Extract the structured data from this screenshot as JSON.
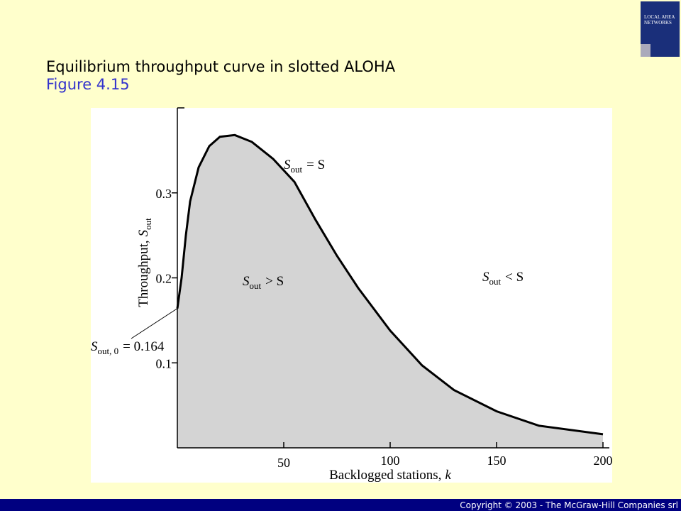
{
  "slide": {
    "title": "Equilibrium throughput curve in slotted ALOHA",
    "subtitle": "Figure 4.15",
    "copyright": "Copyright © 2003 - The McGraw-Hill Companies srl",
    "cover": "LOCAL AREA NETWORKS"
  },
  "chart_data": {
    "type": "area",
    "x": [
      0,
      2,
      4,
      6,
      10,
      15,
      20,
      27,
      35,
      45,
      55,
      65,
      75,
      85,
      100,
      115,
      130,
      150,
      170,
      200
    ],
    "series": [
      {
        "color": "#000000",
        "fill": "#d4d4d4",
        "values": [
          0.164,
          0.2,
          0.25,
          0.29,
          0.33,
          0.355,
          0.366,
          0.368,
          0.36,
          0.34,
          0.313,
          0.268,
          0.226,
          0.188,
          0.138,
          0.097,
          0.068,
          0.043,
          0.026,
          0.016
        ]
      }
    ],
    "xlim": [
      0,
      203
    ],
    "ylim": [
      0,
      0.4
    ],
    "xticks": [
      50,
      100,
      150,
      200
    ],
    "yticks": [
      0.1,
      0.2,
      0.3
    ],
    "xlabel": {
      "text": "Backlogged stations,",
      "var": "k"
    },
    "ylabel": {
      "text": "Throughput,",
      "var": "S",
      "sub": "out"
    },
    "annotations": [
      {
        "main": "S",
        "sub": "out",
        "rest": "= S"
      },
      {
        "main": "S",
        "sub": "out",
        "rest": "> S"
      },
      {
        "main": "S",
        "sub": "out",
        "rest": "< S"
      },
      {
        "main": "S",
        "sub": "out, 0",
        "rest": "= 0.164"
      }
    ]
  }
}
